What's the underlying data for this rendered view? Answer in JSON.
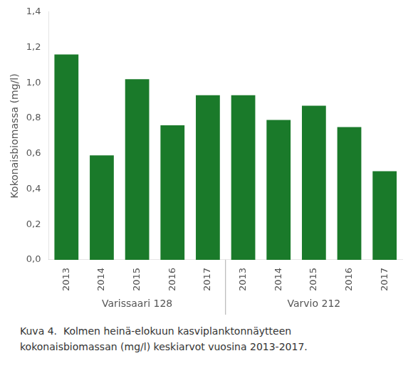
{
  "chart_data": {
    "type": "bar",
    "groups": [
      {
        "label": "Varissaari 128",
        "categories": [
          "2013",
          "2014",
          "2015",
          "2016",
          "2017"
        ],
        "values": [
          1.16,
          0.59,
          1.02,
          0.76,
          0.93
        ]
      },
      {
        "label": "Varvio 212",
        "categories": [
          "2013",
          "2014",
          "2015",
          "2016",
          "2017"
        ],
        "values": [
          0.93,
          0.79,
          0.87,
          0.75,
          0.5
        ]
      }
    ],
    "color": "#1a7a2a",
    "ylabel": "Kokonaisbiomassa (mg/l)",
    "ylim": [
      0,
      1.4
    ],
    "yticks": [
      {
        "value": 0.0,
        "label": "0,0"
      },
      {
        "value": 0.2,
        "label": "0,2"
      },
      {
        "value": 0.4,
        "label": "0,4"
      },
      {
        "value": 0.6,
        "label": "0,6"
      },
      {
        "value": 0.8,
        "label": "0,8"
      },
      {
        "value": 1.0,
        "label": "1,0"
      },
      {
        "value": 1.2,
        "label": "1,2"
      },
      {
        "value": 1.4,
        "label": "1,4"
      }
    ],
    "grid": false,
    "annotations": [
      "Kuva 4.  Kolmen heinä-elokuun kasviplanktonnäytteen",
      "kokonaisbiomassan (mg/l) keskiarvot vuosina 2013-2017."
    ]
  }
}
